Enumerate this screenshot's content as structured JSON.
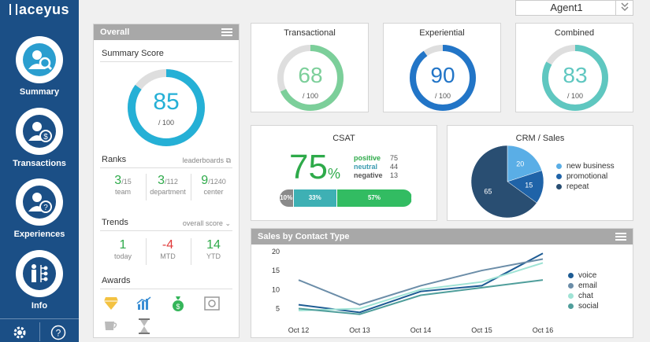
{
  "brand": "aceyus",
  "agent_select": {
    "value": "Agent1"
  },
  "nav": [
    {
      "label": "Summary",
      "icon": "summary-icon"
    },
    {
      "label": "Transactions",
      "icon": "transactions-icon"
    },
    {
      "label": "Experiences",
      "icon": "experiences-icon"
    },
    {
      "label": "Info",
      "icon": "info-icon"
    }
  ],
  "overall": {
    "title": "Overall",
    "summary_title": "Summary Score",
    "score": "85",
    "score_max": "/ 100",
    "score_fraction": 0.85,
    "ranks": {
      "title": "Ranks",
      "link": "leaderboards",
      "items": [
        {
          "value": "3",
          "total": "/15",
          "label": "team"
        },
        {
          "value": "3",
          "total": "/112",
          "label": "department"
        },
        {
          "value": "9",
          "total": "/1240",
          "label": "center"
        }
      ]
    },
    "trends": {
      "title": "Trends",
      "link": "overall score",
      "items": [
        {
          "value": "1",
          "label": "today",
          "color": "#2eaa4a"
        },
        {
          "value": "-4",
          "label": "MTD",
          "color": "#e03a3a"
        },
        {
          "value": "14",
          "label": "YTD",
          "color": "#2eaa4a"
        }
      ]
    },
    "awards": {
      "title": "Awards"
    }
  },
  "scores": [
    {
      "title": "Transactional",
      "value": "68",
      "max": "/ 100",
      "fraction": 0.68,
      "color": "#7ccf9a"
    },
    {
      "title": "Experiential",
      "value": "90",
      "max": "/ 100",
      "fraction": 0.9,
      "color": "#2275c7"
    },
    {
      "title": "Combined",
      "value": "83",
      "max": "/ 100",
      "fraction": 0.83,
      "color": "#5fc7c0"
    }
  ],
  "csat": {
    "title": "CSAT",
    "value": "75",
    "unit": "%",
    "rows": [
      {
        "label": "positive",
        "value": "75",
        "color": "#2eaa4a"
      },
      {
        "label": "neutral",
        "value": "44",
        "color": "#3a9bb0"
      },
      {
        "label": "negative",
        "value": "13",
        "color": "#555"
      }
    ],
    "bar": [
      {
        "label": "10%",
        "fraction": 0.1,
        "color": "#8a8a8a"
      },
      {
        "label": "33%",
        "fraction": 0.33,
        "color": "#3eb0b4"
      },
      {
        "label": "57%",
        "fraction": 0.57,
        "color": "#32bc62"
      }
    ]
  },
  "crm": {
    "title": "CRM / Sales",
    "slices": [
      {
        "label": "new business",
        "value": 20,
        "color": "#5aaee6"
      },
      {
        "label": "promotional",
        "value": 15,
        "color": "#1f63a8"
      },
      {
        "label": "repeat",
        "value": 65,
        "color": "#294e72"
      }
    ]
  },
  "sales": {
    "title": "Sales by Contact Type"
  },
  "chart_data": {
    "type": "line",
    "x": [
      "Oct 12",
      "Oct 13",
      "Oct 14",
      "Oct 15",
      "Oct 16"
    ],
    "ylim": [
      2,
      21
    ],
    "yticks": [
      5,
      10,
      15,
      20
    ],
    "series": [
      {
        "name": "voice",
        "color": "#1d5b93",
        "values": [
          6,
          4,
          9.5,
          11,
          19.5
        ]
      },
      {
        "name": "email",
        "color": "#6b8da8",
        "values": [
          12.5,
          6,
          11,
          15,
          18
        ]
      },
      {
        "name": "chat",
        "color": "#9fe3d5",
        "values": [
          4.5,
          5,
          10,
          12,
          17
        ]
      },
      {
        "name": "social",
        "color": "#4f9e9b",
        "values": [
          5,
          3.5,
          8.5,
          10.5,
          12.5
        ]
      }
    ]
  }
}
